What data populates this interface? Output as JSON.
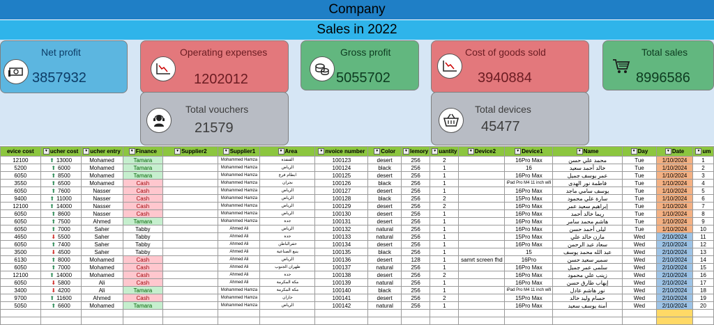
{
  "header": {
    "company": "Company",
    "subtitle": "Sales in 2022"
  },
  "cards": {
    "net_profit": {
      "title": "Net profit",
      "value": "3857932",
      "icon": "cash-icon"
    },
    "operating_expenses": {
      "title": "Operating expenses",
      "value": "1202012",
      "icon": "chart-down-icon"
    },
    "gross_profit": {
      "title": "Gross profit",
      "value": "5055702",
      "icon": "coins-icon"
    },
    "cost_of_goods_sold": {
      "title": "Cost of goods sold",
      "value": "3940884",
      "icon": "chart-down-icon"
    },
    "total_sales": {
      "title": "Total sales",
      "value": "8996586",
      "icon": "cart-icon"
    },
    "total_vouchers": {
      "title": "Total vouchers",
      "value": "21579",
      "icon": "support-agent-icon"
    },
    "total_devices": {
      "title": "Total devices",
      "value": "45477",
      "icon": "basket-icon"
    }
  },
  "table": {
    "headers": [
      "evice cost",
      "ucher cost",
      "ucher entry",
      "Finance",
      "Supplier2",
      "Supplier1",
      "Area",
      "nvoice number",
      "Color",
      "lemory",
      "uantity",
      "Device2",
      "Device1",
      "Name",
      "Day",
      "Date",
      "um"
    ],
    "rows": [
      [
        "12100",
        "13000",
        "Mohamed",
        "Tamara",
        "",
        "Mohammed Hamza",
        "القنفذة",
        "100123",
        "desert",
        "256",
        "2",
        "",
        "16Pro Max",
        "محمد علي حسن",
        "Tue",
        "1/10/2024",
        "1"
      ],
      [
        "5200",
        "6000",
        "Mohamed",
        "Tamara",
        "",
        "Mohammed Hamza",
        "الرياض",
        "100124",
        "black",
        "256",
        "1",
        "",
        "16",
        "خالد أحمد سعيد",
        "Tue",
        "1/10/2024",
        "2"
      ],
      [
        "6050",
        "8500",
        "Mohamed",
        "Tamara",
        "",
        "Mohammed Hamza",
        "ابطام فرع",
        "100125",
        "desert",
        "256",
        "1",
        "",
        "16Pro Max",
        "عمر يوسف جميل",
        "Tue",
        "1/10/2024",
        "3"
      ],
      [
        "3550",
        "6500",
        "Mohamed",
        "Cash",
        "",
        "Mohammed Hamza",
        "نجران",
        "100126",
        "black",
        "256",
        "1",
        "",
        "iPad Pro M4 11 inch wifi",
        "فاطمة نور الهدى",
        "Tue",
        "1/10/2024",
        "4"
      ],
      [
        "6050",
        "7600",
        "Nasser",
        "Cash",
        "",
        "Mohammed Hamza",
        "الرياض",
        "100127",
        "desert",
        "256",
        "1",
        "",
        "16Pro Max",
        "يوسف سامي ماجد",
        "Tue",
        "1/10/2024",
        "5"
      ],
      [
        "9400",
        "11000",
        "Nasser",
        "Cash",
        "",
        "Mohammed Hamza",
        "الرياض",
        "100128",
        "black",
        "256",
        "2",
        "",
        "15Pro Max",
        "سارة علي محمود",
        "Tue",
        "1/10/2024",
        "6"
      ],
      [
        "12100",
        "14000",
        "Nasser",
        "Cash",
        "",
        "Mohammed Hamza",
        "الرياض",
        "100129",
        "desert",
        "256",
        "2",
        "",
        "16Pro Max",
        "إبراهيم سعيد عمر",
        "Tue",
        "1/10/2024",
        "7"
      ],
      [
        "6050",
        "8600",
        "Nasser",
        "Cash",
        "",
        "Mohammed Hamza",
        "الرياض",
        "100130",
        "desert",
        "256",
        "1",
        "",
        "16Pro Max",
        "ريما خالد أحمد",
        "Tue",
        "1/10/2024",
        "8"
      ],
      [
        "6050",
        "7500",
        "Ahmed",
        "Tamara",
        "",
        "Mohammed Hamza",
        "جدة",
        "100131",
        "desert",
        "256",
        "1",
        "",
        "16Pro Max",
        "هاشم محمد سامر",
        "Tue",
        "1/10/2024",
        "9"
      ],
      [
        "6050",
        "7000",
        "Saher",
        "Tabby",
        "",
        "Ahmed Ali",
        "الرياض",
        "100132",
        "natural",
        "256",
        "1",
        "",
        "16Pro Max",
        "ليلى أحمد حسن",
        "Tue",
        "1/10/2024",
        "10"
      ],
      [
        "4650",
        "5500",
        "Saher",
        "Tabby",
        "",
        "Ahmed Ali",
        "جدة",
        "100133",
        "natural",
        "256",
        "1",
        "",
        "15Pro Max",
        "مازن خالد علي",
        "Wed",
        "2/10/2024",
        "11"
      ],
      [
        "6050",
        "7400",
        "Saher",
        "Tabby",
        "",
        "Ahmed Ali",
        "حفرالباطن",
        "100134",
        "desert",
        "256",
        "1",
        "",
        "16Pro Max",
        "سعاد عبد الرحمن",
        "Wed",
        "2/10/2024",
        "12"
      ],
      [
        "3500",
        "4500",
        "Saher",
        "Tabby",
        "",
        "Ahmed Ali",
        "ينبع الصناعية",
        "100135",
        "black",
        "256",
        "1",
        "",
        "15",
        "عبد الله محمد يوسف",
        "Wed",
        "2/10/2024",
        "13"
      ],
      [
        "6130",
        "8000",
        "Mohamed",
        "Cash",
        "",
        "Ahmed Ali",
        "الرياض",
        "100136",
        "desert",
        "128",
        "1",
        "samrt screen fhd",
        "16Pro",
        "سمير سعيد حسن",
        "Wed",
        "2/10/2024",
        "14"
      ],
      [
        "6050",
        "7000",
        "Mohamed",
        "Cash",
        "",
        "Ahmed Ali",
        "ظهران الجنوب",
        "100137",
        "natural",
        "256",
        "1",
        "",
        "16Pro Max",
        "سلمى عمر جميل",
        "Wed",
        "2/10/2024",
        "15"
      ],
      [
        "12100",
        "14000",
        "Mohamed",
        "Cash",
        "",
        "Ahmed Ali",
        "جدة",
        "100138",
        "desert",
        "256",
        "2",
        "",
        "16Pro Max",
        "زينب علي محمود",
        "Wed",
        "2/10/2024",
        "16"
      ],
      [
        "6050",
        "5800",
        "Ali",
        "Cash",
        "",
        "Ahmed Ali",
        "مكة المكرمة",
        "100139",
        "natural",
        "256",
        "1",
        "",
        "16Pro Max",
        "إيهاب طارق حسن",
        "Wed",
        "2/10/2024",
        "17"
      ],
      [
        "3400",
        "4200",
        "Ali",
        "Tamara",
        "",
        "Mohammed Hamza",
        "مكة المكرمة",
        "100140",
        "black",
        "256",
        "1",
        "",
        "iPad Pro M4 11 inch wifi",
        "نور هاشم عادل",
        "Wed",
        "2/10/2024",
        "18"
      ],
      [
        "9700",
        "11600",
        "Ahmed",
        "Cash",
        "",
        "Mohammed Hamza",
        "جازان",
        "100141",
        "desert",
        "256",
        "2",
        "",
        "15Pro Max",
        "حسام وليد خالد",
        "Wed",
        "2/10/2024",
        "19"
      ],
      [
        "5050",
        "6600",
        "Mohamed",
        "Tamara",
        "",
        "Mohammed Hamza",
        "الرياض",
        "100142",
        "natural",
        "256",
        "1",
        "",
        "16Pro Max",
        "أمنة يوسف سعيد",
        "Wed",
        "2/10/2024",
        "20"
      ]
    ],
    "arrows": [
      "up",
      "up",
      "up",
      "up",
      "up",
      "up",
      "up",
      "up",
      "up",
      "up",
      "down",
      "up",
      "down",
      "up",
      "up",
      "up",
      "down",
      "down",
      "up",
      "up"
    ]
  }
}
